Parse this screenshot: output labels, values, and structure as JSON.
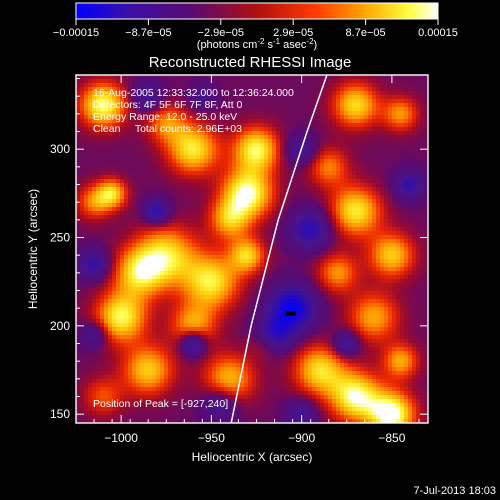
{
  "chart_data": {
    "type": "heatmap",
    "title": "Reconstructed RHESSI Image",
    "colorbar": {
      "tick_labels": [
        "-0.00015",
        "-8.7e-05",
        "-2.9e-05",
        "2.9e-05",
        "8.7e-05",
        "0.00015"
      ],
      "range": [
        -0.00015,
        0.00015
      ],
      "units": "(photons cm^-2 s^-1 asec^-2)",
      "colors": [
        "#0000ff",
        "#3a0eaa",
        "#5a0a72",
        "#b01010",
        "#ff3a00",
        "#ffa800",
        "#ffff40",
        "#ffffff"
      ]
    },
    "info_lines": [
      "16-Aug-2005 12:33:32.000 to 12:36:24.000",
      "Detectors: 4F 5F 6F 7F 8F, Att 0",
      "Energy Range: 12.0 - 25.0 keV",
      "Clean     Total counts: 2.96E+03"
    ],
    "peak_label": "Position of Peak = [-927,240]",
    "peak_position": [
      -927,
      240
    ],
    "xlabel": "Heliocentric X (arcsec)",
    "ylabel": "Heliocentric Y (arcsec)",
    "xlim": [
      -1025,
      -830
    ],
    "ylim": [
      145,
      342
    ],
    "x_ticks": [
      -1000,
      -950,
      -900,
      -850
    ],
    "y_ticks": [
      150,
      200,
      250,
      300
    ],
    "x_tick_labels": [
      "−1000",
      "−950",
      "−900",
      "−850"
    ],
    "y_tick_labels": [
      "150",
      "200",
      "250",
      "300"
    ],
    "limb_curve": [
      [
        -939,
        145
      ],
      [
        -928,
        200
      ],
      [
        -913,
        260
      ],
      [
        -897,
        310
      ],
      [
        -886,
        342
      ]
    ],
    "timestamp": "7-Jul-2013 18:03"
  }
}
